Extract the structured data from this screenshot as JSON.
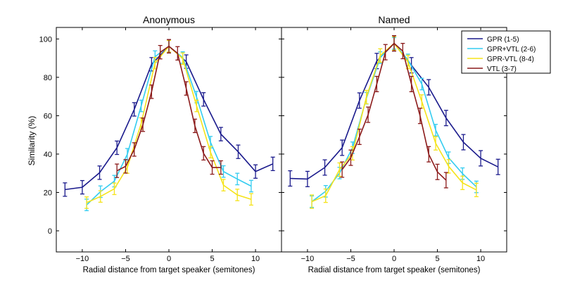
{
  "chart_data": [
    {
      "type": "line",
      "title": "Anonymous",
      "xlabel": "Radial distance from target speaker (semitones)",
      "ylabel": "Similarity (%)",
      "xlim": [
        -13,
        13
      ],
      "ylim": [
        -11,
        106
      ],
      "xticks": [
        -10,
        -5,
        0,
        5,
        10
      ],
      "yticks": [
        0,
        20,
        40,
        60,
        80,
        100
      ],
      "grid": false,
      "error_bars": true,
      "series": [
        {
          "color": "#1a1a8c",
          "err": 3.5,
          "x": [
            -12,
            -10,
            -8,
            -6,
            -4,
            -2,
            0,
            2,
            4,
            6,
            8,
            10,
            12
          ],
          "y": [
            21.5,
            22.7,
            30.3,
            43.3,
            63.3,
            86.8,
            96.2,
            88.2,
            68.5,
            50.4,
            41.2,
            30.9,
            34.9
          ]
        },
        {
          "color": "#33ccf0",
          "err": 3,
          "x": [
            -9.5,
            -7.9,
            -6.3,
            -4.8,
            -3.2,
            -1.6,
            0,
            1.6,
            3.2,
            4.8,
            6.3,
            7.9,
            9.5
          ],
          "y": [
            13.5,
            20.4,
            25.9,
            39.9,
            65.1,
            90.8,
            96.2,
            90.3,
            69.7,
            46.2,
            30.9,
            27.0,
            23.3
          ]
        },
        {
          "color": "#f5e31a",
          "err": 3,
          "x": [
            -9.5,
            -7.9,
            -6.3,
            -4.8,
            -3.2,
            -1.6,
            0,
            1.6,
            3.2,
            4.8,
            6.3,
            7.9,
            9.5
          ],
          "y": [
            14.7,
            17.9,
            21.9,
            33.0,
            55.9,
            87.4,
            96.2,
            89.7,
            65.1,
            41.0,
            23.8,
            18.7,
            16.4
          ]
        },
        {
          "color": "#8b1a1a",
          "err": 3.5,
          "x": [
            -6,
            -5,
            -4,
            -3,
            -2,
            -1,
            0,
            1,
            2,
            3,
            4,
            5,
            6
          ],
          "y": [
            31.3,
            33.6,
            42.4,
            55.3,
            72.5,
            93.1,
            96.2,
            92.5,
            74.2,
            54.7,
            40.4,
            33.0,
            33.0
          ]
        }
      ]
    },
    {
      "type": "line",
      "title": "Named",
      "xlabel": "Radial distance from target speaker (semitones)",
      "xlim": [
        -13,
        13
      ],
      "ylim": [
        -11,
        106
      ],
      "xticks": [
        -10,
        -5,
        0,
        5,
        10
      ],
      "grid": false,
      "error_bars": true,
      "legend": "top-right",
      "series": [
        {
          "name": "GPR (1-5)",
          "color": "#1a1a8c",
          "err": 4,
          "x": [
            -12,
            -10,
            -8,
            -6,
            -4,
            -2,
            0,
            2,
            4,
            6,
            8,
            10,
            12
          ],
          "y": [
            27.3,
            27.0,
            33.0,
            43.3,
            67.9,
            88.5,
            97.7,
            86.3,
            74.8,
            58.8,
            46.2,
            37.8,
            33.3
          ]
        },
        {
          "name": "GPR+VTL (2-6)",
          "color": "#33ccf0",
          "err": 3,
          "x": [
            -9.5,
            -7.9,
            -6.3,
            -4.8,
            -3.2,
            -1.6,
            0,
            1.6,
            3.2,
            4.8,
            6.3,
            7.9,
            9.5
          ],
          "y": [
            15.2,
            20.6,
            30.1,
            43.3,
            69.1,
            90.3,
            97.7,
            89.1,
            76.5,
            52.5,
            38.1,
            29.8,
            22.9
          ]
        },
        {
          "name": "GPR-VTL (8-4)",
          "color": "#f5e31a",
          "err": 3.5,
          "x": [
            -9.5,
            -7.9,
            -6.3,
            -4.8,
            -3.2,
            -1.6,
            0,
            1.6,
            3.2,
            4.8,
            6.3,
            7.9,
            9.5
          ],
          "y": [
            15.2,
            18.3,
            31.9,
            40.4,
            69.7,
            91.4,
            97.7,
            88.0,
            67.4,
            45.6,
            33.6,
            25.0,
            21.3
          ]
        },
        {
          "name": "VTL (3-7)",
          "color": "#8b1a1a",
          "err": 4,
          "x": [
            -6,
            -5,
            -4,
            -3,
            -2,
            -1,
            0,
            1,
            2,
            3,
            4,
            5,
            6
          ],
          "y": [
            31.9,
            38.1,
            49.0,
            60.5,
            76.5,
            93.1,
            97.7,
            93.7,
            76.5,
            59.9,
            39.9,
            30.7,
            26.4
          ]
        }
      ]
    }
  ]
}
